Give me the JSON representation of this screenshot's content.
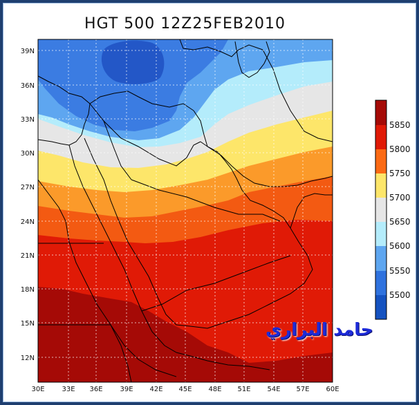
{
  "title": "HGT 500 12Z25FEB2010",
  "signature": "حامد البراري",
  "lat_labels": [
    "39N",
    "36N",
    "33N",
    "30N",
    "27N",
    "24N",
    "21N",
    "18N",
    "15N",
    "12N"
  ],
  "lon_labels": [
    "30E",
    "33E",
    "36E",
    "39E",
    "42E",
    "45E",
    "48E",
    "51E",
    "54E",
    "57E",
    "60E"
  ],
  "colorbar": {
    "levels": [
      "5850",
      "5800",
      "5750",
      "5700",
      "5650",
      "5600",
      "5550",
      "5500"
    ],
    "colors": [
      "#a50a06",
      "#e01a06",
      "#fb6a14",
      "#fde66a",
      "#e6e6e6",
      "#b4ecfb",
      "#5ea6f0",
      "#2f72de",
      "#1552c0"
    ]
  },
  "colors": {
    "c5500": "#2357c7",
    "c5550": "#3b7ce2",
    "c5600": "#5ea6f0",
    "c5650": "#b4ecfb",
    "c5700": "#e6e6e6",
    "c5750": "#fde66a",
    "c5800": "#fb9a2a",
    "c5850": "#f35a12",
    "c5900": "#e01a06",
    "c5950": "#a50a06"
  }
}
